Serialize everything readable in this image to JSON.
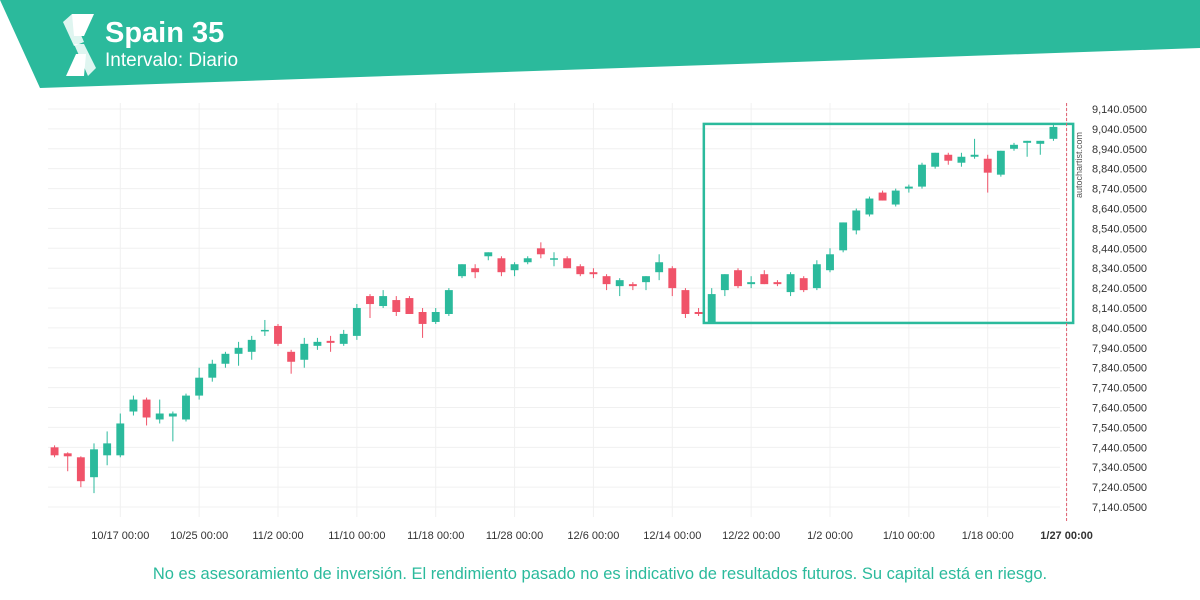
{
  "header": {
    "title": "Spain 35",
    "interval": "Intervalo: Diario",
    "brand_color": "#2bba9c",
    "logo_icon": "autochartist-logo-icon"
  },
  "watermark": "autochartist.com",
  "disclaimer": "No es asesoramiento de inversión. El rendimiento pasado no es indicativo de resultados futuros. Su capital está en riesgo.",
  "chart_data": {
    "type": "candlestick",
    "title": "",
    "xlabel": "",
    "ylabel": "",
    "ylim": [
      7090.05,
      9170.05
    ],
    "grid": true,
    "up_color": "#2bba9c",
    "down_color": "#f05369",
    "y_ticks": [
      "9,140.0500",
      "9,040.0500",
      "8,940.0500",
      "8,840.0500",
      "8,740.0500",
      "8,640.0500",
      "8,540.0500",
      "8,440.0500",
      "8,340.0500",
      "8,240.0500",
      "8,140.0500",
      "8,040.0500",
      "7,940.0500",
      "7,840.0500",
      "7,740.0500",
      "7,640.0500",
      "7,540.0500",
      "7,440.0500",
      "7,340.0500",
      "7,240.0500",
      "7,140.0500"
    ],
    "y_tick_values": [
      9140.05,
      9040.05,
      8940.05,
      8840.05,
      8740.05,
      8640.05,
      8540.05,
      8440.05,
      8340.05,
      8240.05,
      8140.05,
      8040.05,
      7940.05,
      7840.05,
      7740.05,
      7640.05,
      7540.05,
      7440.05,
      7340.05,
      7240.05,
      7140.05
    ],
    "x_ticks": [
      "10/17 00:00",
      "10/25 00:00",
      "11/2 00:00",
      "11/10 00:00",
      "11/18 00:00",
      "11/28 00:00",
      "12/6 00:00",
      "12/14 00:00",
      "12/22 00:00",
      "1/2 00:00",
      "1/10 00:00",
      "1/18 00:00",
      "1/27 00:00"
    ],
    "x_tick_index": [
      5,
      11,
      17,
      23,
      29,
      35,
      41,
      47,
      53,
      59,
      65,
      71,
      77
    ],
    "highlight_tick": "1/27 00:00",
    "candles": [
      {
        "o": 7440,
        "h": 7450,
        "l": 7390,
        "c": 7400
      },
      {
        "o": 7410,
        "h": 7415,
        "l": 7320,
        "c": 7395
      },
      {
        "o": 7390,
        "h": 7395,
        "l": 7240,
        "c": 7270
      },
      {
        "o": 7290,
        "h": 7460,
        "l": 7210,
        "c": 7430
      },
      {
        "o": 7400,
        "h": 7520,
        "l": 7350,
        "c": 7460
      },
      {
        "o": 7400,
        "h": 7610,
        "l": 7390,
        "c": 7560
      },
      {
        "o": 7620,
        "h": 7700,
        "l": 7600,
        "c": 7680
      },
      {
        "o": 7680,
        "h": 7690,
        "l": 7550,
        "c": 7590
      },
      {
        "o": 7580,
        "h": 7680,
        "l": 7560,
        "c": 7610
      },
      {
        "o": 7595,
        "h": 7620,
        "l": 7470,
        "c": 7610
      },
      {
        "o": 7580,
        "h": 7710,
        "l": 7570,
        "c": 7700
      },
      {
        "o": 7700,
        "h": 7840,
        "l": 7680,
        "c": 7790
      },
      {
        "o": 7790,
        "h": 7880,
        "l": 7770,
        "c": 7860
      },
      {
        "o": 7860,
        "h": 7920,
        "l": 7840,
        "c": 7910
      },
      {
        "o": 7910,
        "h": 7970,
        "l": 7850,
        "c": 7940
      },
      {
        "o": 7920,
        "h": 8000,
        "l": 7880,
        "c": 7980
      },
      {
        "o": 8030,
        "h": 8080,
        "l": 8000,
        "c": 8030
      },
      {
        "o": 8050,
        "h": 8060,
        "l": 7950,
        "c": 7960
      },
      {
        "o": 7920,
        "h": 7930,
        "l": 7810,
        "c": 7870
      },
      {
        "o": 7880,
        "h": 7990,
        "l": 7840,
        "c": 7960
      },
      {
        "o": 7950,
        "h": 7990,
        "l": 7930,
        "c": 7970
      },
      {
        "o": 7975,
        "h": 8000,
        "l": 7920,
        "c": 7965
      },
      {
        "o": 7960,
        "h": 8030,
        "l": 7950,
        "c": 8010
      },
      {
        "o": 8000,
        "h": 8160,
        "l": 7980,
        "c": 8140
      },
      {
        "o": 8200,
        "h": 8210,
        "l": 8090,
        "c": 8160
      },
      {
        "o": 8150,
        "h": 8230,
        "l": 8140,
        "c": 8200
      },
      {
        "o": 8180,
        "h": 8200,
        "l": 8100,
        "c": 8120
      },
      {
        "o": 8190,
        "h": 8200,
        "l": 8110,
        "c": 8110
      },
      {
        "o": 8120,
        "h": 8140,
        "l": 7990,
        "c": 8060
      },
      {
        "o": 8070,
        "h": 8140,
        "l": 8060,
        "c": 8120
      },
      {
        "o": 8110,
        "h": 8240,
        "l": 8100,
        "c": 8230
      },
      {
        "o": 8300,
        "h": 8360,
        "l": 8290,
        "c": 8360
      },
      {
        "o": 8340,
        "h": 8360,
        "l": 8290,
        "c": 8320
      },
      {
        "o": 8400,
        "h": 8420,
        "l": 8380,
        "c": 8420
      },
      {
        "o": 8390,
        "h": 8400,
        "l": 8300,
        "c": 8320
      },
      {
        "o": 8330,
        "h": 8370,
        "l": 8300,
        "c": 8360
      },
      {
        "o": 8370,
        "h": 8400,
        "l": 8360,
        "c": 8390
      },
      {
        "o": 8440,
        "h": 8470,
        "l": 8390,
        "c": 8410
      },
      {
        "o": 8390,
        "h": 8420,
        "l": 8350,
        "c": 8390
      },
      {
        "o": 8390,
        "h": 8400,
        "l": 8340,
        "c": 8340
      },
      {
        "o": 8350,
        "h": 8360,
        "l": 8300,
        "c": 8310
      },
      {
        "o": 8320,
        "h": 8340,
        "l": 8290,
        "c": 8310
      },
      {
        "o": 8300,
        "h": 8310,
        "l": 8230,
        "c": 8260
      },
      {
        "o": 8250,
        "h": 8290,
        "l": 8200,
        "c": 8280
      },
      {
        "o": 8260,
        "h": 8270,
        "l": 8230,
        "c": 8250
      },
      {
        "o": 8270,
        "h": 8300,
        "l": 8230,
        "c": 8300
      },
      {
        "o": 8320,
        "h": 8410,
        "l": 8280,
        "c": 8370
      },
      {
        "o": 8340,
        "h": 8350,
        "l": 8200,
        "c": 8240
      },
      {
        "o": 8230,
        "h": 8240,
        "l": 8090,
        "c": 8110
      },
      {
        "o": 8120,
        "h": 8140,
        "l": 8100,
        "c": 8110
      },
      {
        "o": 8060,
        "h": 8240,
        "l": 8060,
        "c": 8210
      },
      {
        "o": 8230,
        "h": 8310,
        "l": 8200,
        "c": 8310
      },
      {
        "o": 8330,
        "h": 8340,
        "l": 8240,
        "c": 8250
      },
      {
        "o": 8260,
        "h": 8300,
        "l": 8240,
        "c": 8270
      },
      {
        "o": 8310,
        "h": 8330,
        "l": 8260,
        "c": 8260
      },
      {
        "o": 8270,
        "h": 8280,
        "l": 8250,
        "c": 8260
      },
      {
        "o": 8220,
        "h": 8320,
        "l": 8200,
        "c": 8310
      },
      {
        "o": 8290,
        "h": 8300,
        "l": 8220,
        "c": 8230
      },
      {
        "o": 8240,
        "h": 8380,
        "l": 8230,
        "c": 8360
      },
      {
        "o": 8330,
        "h": 8440,
        "l": 8320,
        "c": 8410
      },
      {
        "o": 8430,
        "h": 8570,
        "l": 8420,
        "c": 8570
      },
      {
        "o": 8530,
        "h": 8640,
        "l": 8510,
        "c": 8630
      },
      {
        "o": 8610,
        "h": 8700,
        "l": 8600,
        "c": 8690
      },
      {
        "o": 8720,
        "h": 8730,
        "l": 8680,
        "c": 8680
      },
      {
        "o": 8660,
        "h": 8740,
        "l": 8650,
        "c": 8730
      },
      {
        "o": 8740,
        "h": 8760,
        "l": 8720,
        "c": 8750
      },
      {
        "o": 8750,
        "h": 8870,
        "l": 8740,
        "c": 8860
      },
      {
        "o": 8850,
        "h": 8920,
        "l": 8840,
        "c": 8920
      },
      {
        "o": 8910,
        "h": 8920,
        "l": 8860,
        "c": 8880
      },
      {
        "o": 8870,
        "h": 8920,
        "l": 8850,
        "c": 8900
      },
      {
        "o": 8900,
        "h": 8990,
        "l": 8890,
        "c": 8910
      },
      {
        "o": 8890,
        "h": 8910,
        "l": 8720,
        "c": 8820
      },
      {
        "o": 8810,
        "h": 8930,
        "l": 8800,
        "c": 8930
      },
      {
        "o": 8940,
        "h": 8970,
        "l": 8930,
        "c": 8960
      },
      {
        "o": 8970,
        "h": 8980,
        "l": 8900,
        "c": 8980
      },
      {
        "o": 8965,
        "h": 8980,
        "l": 8910,
        "c": 8980
      },
      {
        "o": 8990,
        "h": 9070,
        "l": 8980,
        "c": 9050
      }
    ],
    "pattern_box": {
      "start_index": 50,
      "end_index": 77,
      "upper": 9065,
      "lower": 8065
    },
    "marker_line": "1/27 00:00"
  }
}
